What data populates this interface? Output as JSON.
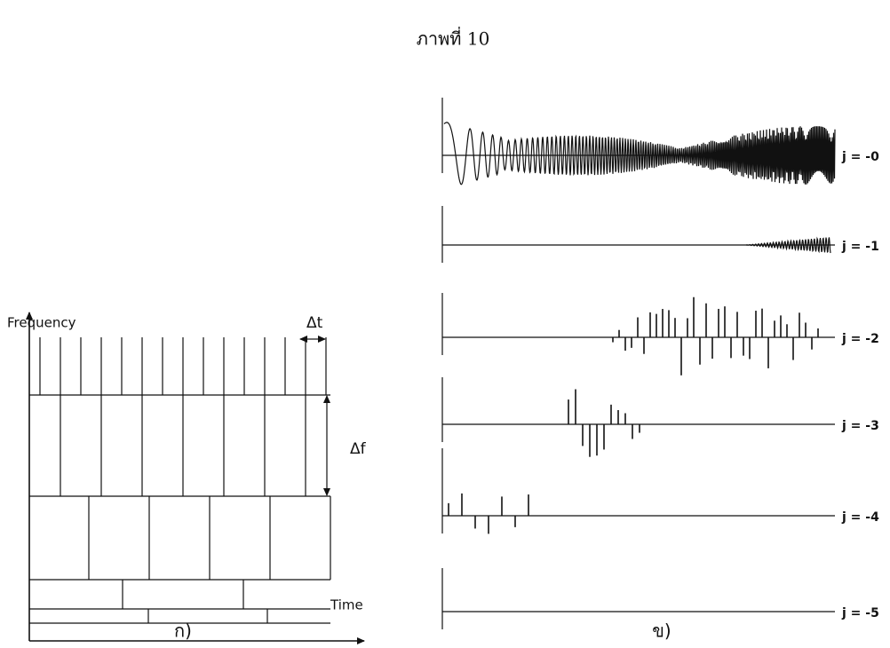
{
  "title": "ภาพที่ 10",
  "left": {
    "y_label": "Frequency",
    "x_label": "Time",
    "dt_label": "Δt",
    "df_label": "Δf",
    "caption": "ก)"
  },
  "right": {
    "levels": [
      "j = -0",
      "j = -1",
      "j = -2",
      "j = -3",
      "j = -4",
      "j = -5"
    ],
    "caption": "ข)"
  }
}
